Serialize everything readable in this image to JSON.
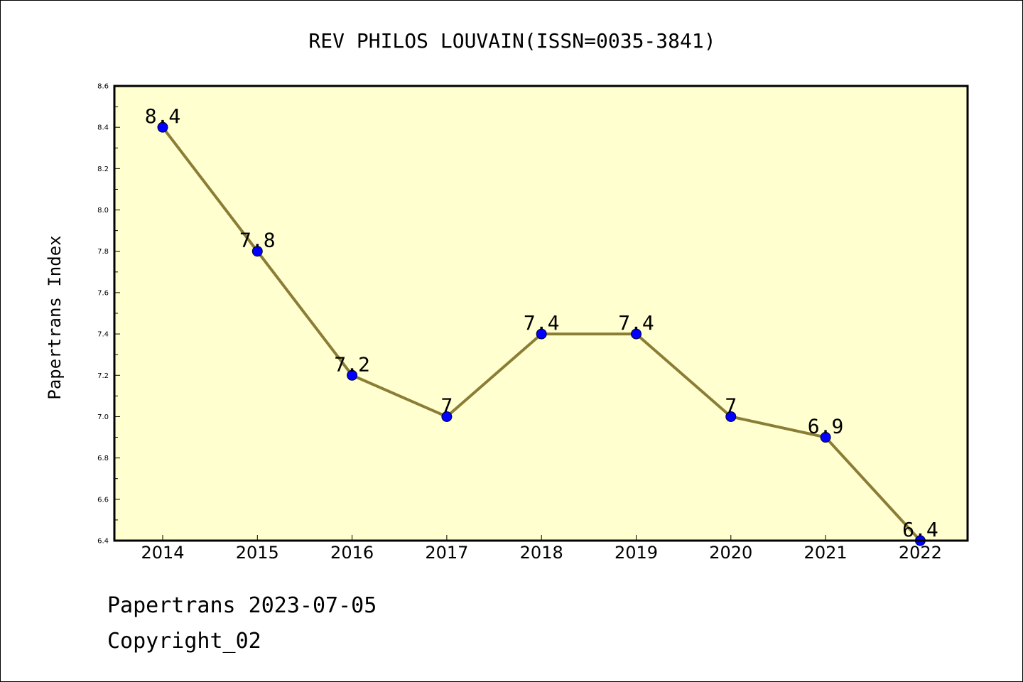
{
  "chart_data": {
    "type": "line",
    "title": "REV PHILOS LOUVAIN(ISSN=0035-3841)",
    "xlabel": "",
    "ylabel": "Papertrans Index",
    "categories": [
      "2014",
      "2015",
      "2016",
      "2017",
      "2018",
      "2019",
      "2020",
      "2021",
      "2022"
    ],
    "series": [
      {
        "values": [
          8.4,
          7.8,
          7.2,
          7.0,
          7.4,
          7.4,
          7.0,
          6.9,
          6.4
        ],
        "data_labels": [
          "8.4",
          "7.8",
          "7.2",
          "7",
          "7.4",
          "7.4",
          "7",
          "6.9",
          "6.4"
        ]
      }
    ],
    "ylim": [
      6.4,
      8.6
    ],
    "yticks": [
      "6.4",
      "6.6",
      "6.8",
      "7.0",
      "7.2",
      "7.4",
      "7.6",
      "7.8",
      "8.0",
      "8.2",
      "8.4",
      "8.6"
    ],
    "grid": false,
    "legend": "none",
    "colors": {
      "plot_background": "#ffffd0",
      "line": "#8b7d36",
      "marker": "#0000ff"
    }
  },
  "footer": {
    "date_text": "Papertrans 2023-07-05",
    "copyright_text": "Copyright_02"
  }
}
